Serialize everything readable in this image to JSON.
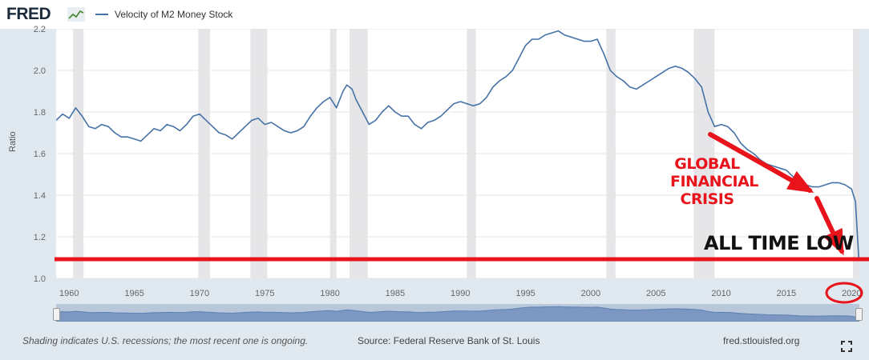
{
  "header": {
    "logo_text": "FRED",
    "legend_label": "Velocity of M2 Money Stock",
    "series_color": "#4572a7"
  },
  "footer": {
    "note": "Shading indicates U.S. recessions; the most recent one is ongoing.",
    "source": "Source: Federal Reserve Bank of St. Louis",
    "url": "fred.stlouisfed.org",
    "fullscreen_icon": "fullscreen-icon"
  },
  "annotations": {
    "crisis_lines": [
      "GLOBAL",
      "FINANCIAL",
      "CRISIS"
    ],
    "low_label": "ALL TIME LOW",
    "color": "#e8131b"
  },
  "chart_data": {
    "type": "line",
    "title": "",
    "xlabel": "",
    "ylabel": "Ratio",
    "xlim": [
      1959,
      2020.6
    ],
    "ylim": [
      1.0,
      2.2
    ],
    "x_ticks": [
      "1960",
      "1965",
      "1970",
      "1975",
      "1980",
      "1985",
      "1990",
      "1995",
      "2000",
      "2005",
      "2010",
      "2015",
      "2020"
    ],
    "y_ticks": [
      "1.0",
      "1.2",
      "1.4",
      "1.6",
      "1.8",
      "2.0",
      "2.2"
    ],
    "grid": true,
    "legend": "top-left",
    "recessions": [
      [
        1960.3,
        1961.1
      ],
      [
        1969.9,
        1970.8
      ],
      [
        1973.9,
        1975.2
      ],
      [
        1980.0,
        1980.5
      ],
      [
        1981.5,
        1982.9
      ],
      [
        1990.5,
        1991.2
      ],
      [
        2001.2,
        2001.9
      ],
      [
        2007.9,
        2009.5
      ],
      [
        2020.1,
        2020.6
      ]
    ],
    "series": [
      {
        "name": "Velocity of M2 Money Stock",
        "points": [
          [
            1959.0,
            1.76
          ],
          [
            1959.5,
            1.79
          ],
          [
            1960.0,
            1.77
          ],
          [
            1960.5,
            1.82
          ],
          [
            1961.0,
            1.78
          ],
          [
            1961.5,
            1.73
          ],
          [
            1962.0,
            1.72
          ],
          [
            1962.5,
            1.74
          ],
          [
            1963.0,
            1.73
          ],
          [
            1963.5,
            1.7
          ],
          [
            1964.0,
            1.68
          ],
          [
            1964.5,
            1.68
          ],
          [
            1965.0,
            1.67
          ],
          [
            1965.5,
            1.66
          ],
          [
            1966.0,
            1.69
          ],
          [
            1966.5,
            1.72
          ],
          [
            1967.0,
            1.71
          ],
          [
            1967.5,
            1.74
          ],
          [
            1968.0,
            1.73
          ],
          [
            1968.5,
            1.71
          ],
          [
            1969.0,
            1.74
          ],
          [
            1969.5,
            1.78
          ],
          [
            1970.0,
            1.79
          ],
          [
            1970.5,
            1.76
          ],
          [
            1971.0,
            1.73
          ],
          [
            1971.5,
            1.7
          ],
          [
            1972.0,
            1.69
          ],
          [
            1972.5,
            1.67
          ],
          [
            1973.0,
            1.7
          ],
          [
            1973.5,
            1.73
          ],
          [
            1974.0,
            1.76
          ],
          [
            1974.5,
            1.77
          ],
          [
            1975.0,
            1.74
          ],
          [
            1975.5,
            1.75
          ],
          [
            1976.0,
            1.73
          ],
          [
            1976.5,
            1.71
          ],
          [
            1977.0,
            1.7
          ],
          [
            1977.5,
            1.71
          ],
          [
            1978.0,
            1.73
          ],
          [
            1978.5,
            1.78
          ],
          [
            1979.0,
            1.82
          ],
          [
            1979.5,
            1.85
          ],
          [
            1980.0,
            1.87
          ],
          [
            1980.5,
            1.82
          ],
          [
            1981.0,
            1.9
          ],
          [
            1981.3,
            1.93
          ],
          [
            1981.7,
            1.91
          ],
          [
            1982.0,
            1.86
          ],
          [
            1982.5,
            1.8
          ],
          [
            1983.0,
            1.74
          ],
          [
            1983.5,
            1.76
          ],
          [
            1984.0,
            1.8
          ],
          [
            1984.5,
            1.83
          ],
          [
            1985.0,
            1.8
          ],
          [
            1985.5,
            1.78
          ],
          [
            1986.0,
            1.78
          ],
          [
            1986.5,
            1.74
          ],
          [
            1987.0,
            1.72
          ],
          [
            1987.5,
            1.75
          ],
          [
            1988.0,
            1.76
          ],
          [
            1988.5,
            1.78
          ],
          [
            1989.0,
            1.81
          ],
          [
            1989.5,
            1.84
          ],
          [
            1990.0,
            1.85
          ],
          [
            1990.5,
            1.84
          ],
          [
            1991.0,
            1.83
          ],
          [
            1991.5,
            1.84
          ],
          [
            1992.0,
            1.87
          ],
          [
            1992.5,
            1.92
          ],
          [
            1993.0,
            1.95
          ],
          [
            1993.5,
            1.97
          ],
          [
            1994.0,
            2.0
          ],
          [
            1994.5,
            2.06
          ],
          [
            1995.0,
            2.12
          ],
          [
            1995.5,
            2.15
          ],
          [
            1996.0,
            2.15
          ],
          [
            1996.5,
            2.17
          ],
          [
            1997.0,
            2.18
          ],
          [
            1997.5,
            2.19
          ],
          [
            1998.0,
            2.17
          ],
          [
            1998.5,
            2.16
          ],
          [
            1999.0,
            2.15
          ],
          [
            1999.5,
            2.14
          ],
          [
            2000.0,
            2.14
          ],
          [
            2000.5,
            2.15
          ],
          [
            2001.0,
            2.08
          ],
          [
            2001.5,
            2.0
          ],
          [
            2002.0,
            1.97
          ],
          [
            2002.5,
            1.95
          ],
          [
            2003.0,
            1.92
          ],
          [
            2003.5,
            1.91
          ],
          [
            2004.0,
            1.93
          ],
          [
            2004.5,
            1.95
          ],
          [
            2005.0,
            1.97
          ],
          [
            2005.5,
            1.99
          ],
          [
            2006.0,
            2.01
          ],
          [
            2006.5,
            2.02
          ],
          [
            2007.0,
            2.01
          ],
          [
            2007.5,
            1.99
          ],
          [
            2008.0,
            1.96
          ],
          [
            2008.5,
            1.92
          ],
          [
            2009.0,
            1.8
          ],
          [
            2009.5,
            1.73
          ],
          [
            2010.0,
            1.74
          ],
          [
            2010.5,
            1.73
          ],
          [
            2011.0,
            1.7
          ],
          [
            2011.5,
            1.65
          ],
          [
            2012.0,
            1.62
          ],
          [
            2012.5,
            1.6
          ],
          [
            2013.0,
            1.57
          ],
          [
            2013.5,
            1.55
          ],
          [
            2014.0,
            1.54
          ],
          [
            2014.5,
            1.53
          ],
          [
            2015.0,
            1.52
          ],
          [
            2015.5,
            1.49
          ],
          [
            2016.0,
            1.46
          ],
          [
            2016.5,
            1.45
          ],
          [
            2017.0,
            1.44
          ],
          [
            2017.5,
            1.44
          ],
          [
            2018.0,
            1.45
          ],
          [
            2018.5,
            1.46
          ],
          [
            2019.0,
            1.46
          ],
          [
            2019.5,
            1.45
          ],
          [
            2020.0,
            1.43
          ],
          [
            2020.3,
            1.37
          ],
          [
            2020.55,
            1.1
          ]
        ]
      }
    ]
  }
}
